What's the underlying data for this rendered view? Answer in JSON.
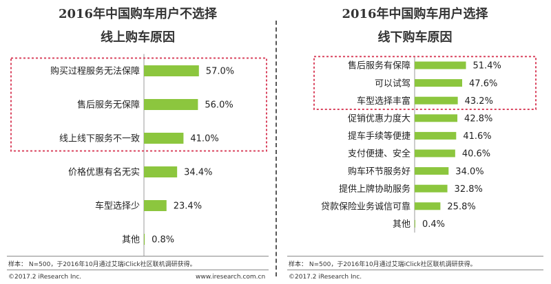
{
  "left": {
    "title_line1": "2016年中国购车用户不选择",
    "title_line2": "线上购车原因",
    "source": "样本：  N=500，于2016年10月通过艾瑞iClick社区联机调研获得。",
    "copyright": "©2017.2 iResearch Inc.",
    "website": "www.iresearch.com.cn"
  },
  "right": {
    "title_line1": "2016年中国购车用户选择",
    "title_line2": "线下购车原因",
    "source": "样本：  N=500，于2016年10月通过艾瑞iClick社区联机调研获得。",
    "copyright": "©2017.2 iResearch Inc."
  },
  "colors": {
    "bar": "#8cc63e",
    "highlight": "#d9435e",
    "text": "#222222"
  },
  "chart_data": [
    {
      "type": "bar",
      "orientation": "horizontal",
      "categories": [
        "购买过程服务无法保障",
        "售后服务无保障",
        "线上线下服务不一致",
        "价格优惠有名无实",
        "车型选择少",
        "其他"
      ],
      "values": [
        57.0,
        56.0,
        41.0,
        34.4,
        23.4,
        0.8
      ],
      "value_labels": [
        "57.0%",
        "56.0%",
        "41.0%",
        "34.4%",
        "23.4%",
        "0.8%"
      ],
      "unit": "%",
      "highlighted_count": 3
    },
    {
      "type": "bar",
      "orientation": "horizontal",
      "categories": [
        "售后服务有保障",
        "可以试驾",
        "车型选择丰富",
        "促销优惠力度大",
        "提车手续等便捷",
        "支付便捷、安全",
        "购车环节服务好",
        "提供上牌协助服务",
        "贷款保险业务诚信可靠",
        "其他"
      ],
      "values": [
        51.4,
        47.6,
        43.2,
        42.8,
        41.6,
        40.6,
        34.0,
        32.8,
        25.8,
        0.4
      ],
      "value_labels": [
        "51.4%",
        "47.6%",
        "43.2%",
        "42.8%",
        "41.6%",
        "40.6%",
        "34.0%",
        "32.8%",
        "25.8%",
        "0.4%"
      ],
      "unit": "%",
      "highlighted_count": 3
    }
  ]
}
